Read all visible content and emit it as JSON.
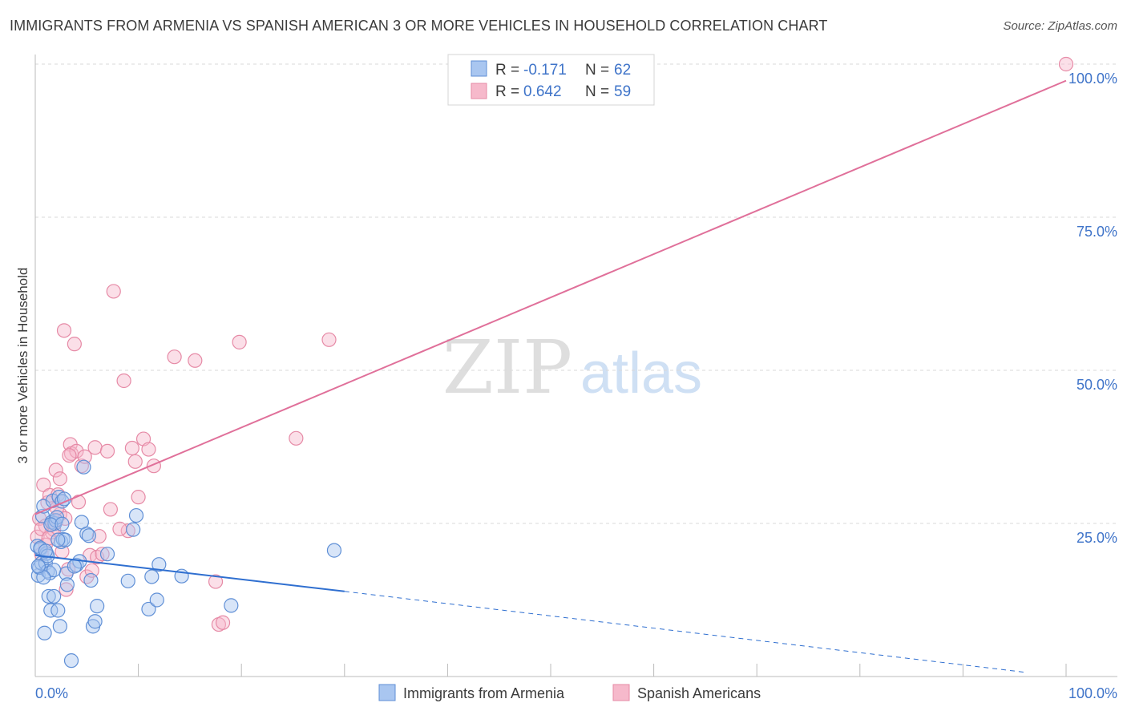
{
  "header": {
    "title": "IMMIGRANTS FROM ARMENIA VS SPANISH AMERICAN 3 OR MORE VEHICLES IN HOUSEHOLD CORRELATION CHART",
    "source": "Source: ZipAtlas.com"
  },
  "watermark": {
    "zip": "ZIP",
    "atlas": "atlas"
  },
  "colors": {
    "blue_fill": "#a9c6f0",
    "blue_stroke": "#5f8fd6",
    "blue_line": "#2f6fd0",
    "pink_fill": "#f6b9cb",
    "pink_stroke": "#e68aa6",
    "pink_line": "#e0709a",
    "axis_text": "#3f74c9",
    "grid": "#d9d9d9"
  },
  "legend": {
    "rows": [
      {
        "r_label": "R =",
        "r_value": "-0.171",
        "n_label": "N =",
        "n_value": "62",
        "series": "armenia"
      },
      {
        "r_label": "R =",
        "r_value": "0.642",
        "n_label": "N =",
        "n_value": "59",
        "series": "spanish"
      }
    ]
  },
  "bottom_legend": [
    "Immigrants from Armenia",
    "Spanish Americans"
  ],
  "chart_data": {
    "type": "scatter",
    "title": "IMMIGRANTS FROM ARMENIA VS SPANISH AMERICAN 3 OR MORE VEHICLES IN HOUSEHOLD CORRELATION CHART",
    "xlabel": "",
    "ylabel": "3 or more Vehicles in Household",
    "xlim": [
      0,
      100
    ],
    "ylim": [
      0,
      100
    ],
    "x_tick_labels": [
      {
        "value": 0,
        "label": "0.0%"
      },
      {
        "value": 100,
        "label": "100.0%"
      }
    ],
    "y_tick_labels": [
      {
        "value": 25,
        "label": "25.0%"
      },
      {
        "value": 50,
        "label": "50.0%"
      },
      {
        "value": 75,
        "label": "75.0%"
      },
      {
        "value": 100,
        "label": "100.0%"
      }
    ],
    "grid": "horizontal dashed",
    "series": [
      {
        "name": "Immigrants from Armenia",
        "R": -0.171,
        "N": 62,
        "trend": {
          "x0": 0,
          "y0": 19.8,
          "x1": 30,
          "y1": 13.9,
          "dashed_to_x": 96,
          "dashed_to_y": 0.7
        },
        "points": [
          [
            0.2,
            21.3
          ],
          [
            0.3,
            16.5
          ],
          [
            0.4,
            17.8
          ],
          [
            0.5,
            20.8
          ],
          [
            0.6,
            18.5
          ],
          [
            0.7,
            26.2
          ],
          [
            0.8,
            27.8
          ],
          [
            0.9,
            7.1
          ],
          [
            1.0,
            18.5
          ],
          [
            1.1,
            20.1
          ],
          [
            1.2,
            17.2
          ],
          [
            1.3,
            13.1
          ],
          [
            1.4,
            16.9
          ],
          [
            1.5,
            10.8
          ],
          [
            1.6,
            25.2
          ],
          [
            1.7,
            28.7
          ],
          [
            1.8,
            13.1
          ],
          [
            1.9,
            25.0
          ],
          [
            2.0,
            25.5
          ],
          [
            2.1,
            26.0
          ],
          [
            2.2,
            10.8
          ],
          [
            2.3,
            29.3
          ],
          [
            2.4,
            8.2
          ],
          [
            2.5,
            22.0
          ],
          [
            2.6,
            28.6
          ],
          [
            2.7,
            22.4
          ],
          [
            2.8,
            29.0
          ],
          [
            2.9,
            22.3
          ],
          [
            3.0,
            16.8
          ],
          [
            3.1,
            15.0
          ],
          [
            3.5,
            2.6
          ],
          [
            4.0,
            18.2
          ],
          [
            4.3,
            18.8
          ],
          [
            4.5,
            25.2
          ],
          [
            4.7,
            34.2
          ],
          [
            5.0,
            23.3
          ],
          [
            5.2,
            23.0
          ],
          [
            5.4,
            15.7
          ],
          [
            5.6,
            8.2
          ],
          [
            5.8,
            9.0
          ],
          [
            6.0,
            11.5
          ],
          [
            7.0,
            20.0
          ],
          [
            9.0,
            15.6
          ],
          [
            9.5,
            24.0
          ],
          [
            9.8,
            26.3
          ],
          [
            11.0,
            11.0
          ],
          [
            11.3,
            16.3
          ],
          [
            11.8,
            12.5
          ],
          [
            12.0,
            18.3
          ],
          [
            14.2,
            16.4
          ],
          [
            19.0,
            11.6
          ],
          [
            29.0,
            20.6
          ],
          [
            0.5,
            21.0
          ],
          [
            1.2,
            19.7
          ],
          [
            1.8,
            17.4
          ],
          [
            2.2,
            22.3
          ],
          [
            0.8,
            16.2
          ],
          [
            1.5,
            24.8
          ],
          [
            2.6,
            24.9
          ],
          [
            3.8,
            18.0
          ],
          [
            0.3,
            18.0
          ],
          [
            1.0,
            20.5
          ]
        ]
      },
      {
        "name": "Spanish Americans",
        "R": 0.642,
        "N": 59,
        "trend": {
          "x0": 0,
          "y0": 26.5,
          "x1": 100,
          "y1": 97.3
        },
        "points": [
          [
            0.2,
            22.8
          ],
          [
            0.4,
            25.8
          ],
          [
            0.6,
            20.0
          ],
          [
            0.8,
            31.3
          ],
          [
            1.0,
            24.6
          ],
          [
            1.2,
            28.4
          ],
          [
            1.4,
            29.6
          ],
          [
            1.6,
            23.6
          ],
          [
            1.8,
            25.0
          ],
          [
            2.0,
            33.7
          ],
          [
            2.2,
            29.7
          ],
          [
            2.4,
            26.5
          ],
          [
            2.6,
            20.4
          ],
          [
            2.8,
            56.5
          ],
          [
            3.0,
            14.2
          ],
          [
            3.2,
            17.5
          ],
          [
            3.4,
            37.9
          ],
          [
            3.5,
            36.4
          ],
          [
            3.8,
            54.3
          ],
          [
            4.0,
            36.8
          ],
          [
            4.2,
            28.5
          ],
          [
            4.5,
            34.4
          ],
          [
            5.0,
            16.3
          ],
          [
            5.3,
            19.8
          ],
          [
            5.5,
            17.3
          ],
          [
            5.8,
            37.4
          ],
          [
            6.0,
            19.5
          ],
          [
            6.2,
            22.9
          ],
          [
            7.0,
            36.8
          ],
          [
            7.3,
            27.3
          ],
          [
            7.6,
            62.9
          ],
          [
            8.6,
            48.3
          ],
          [
            9.0,
            23.8
          ],
          [
            9.4,
            37.3
          ],
          [
            9.7,
            35.1
          ],
          [
            10.0,
            29.3
          ],
          [
            10.5,
            38.8
          ],
          [
            11.0,
            37.1
          ],
          [
            11.5,
            34.4
          ],
          [
            13.5,
            52.2
          ],
          [
            15.5,
            51.6
          ],
          [
            17.5,
            15.5
          ],
          [
            17.8,
            8.5
          ],
          [
            18.2,
            8.8
          ],
          [
            19.8,
            54.6
          ],
          [
            25.3,
            38.9
          ],
          [
            28.5,
            55.0
          ],
          [
            100.0,
            100.0
          ],
          [
            1.0,
            21.5
          ],
          [
            1.8,
            24.0
          ],
          [
            2.4,
            32.3
          ],
          [
            3.3,
            36.1
          ],
          [
            0.6,
            24.1
          ],
          [
            1.3,
            22.6
          ],
          [
            2.1,
            27.5
          ],
          [
            4.8,
            35.9
          ],
          [
            6.5,
            20.0
          ],
          [
            8.2,
            24.1
          ],
          [
            2.9,
            25.8
          ]
        ]
      }
    ]
  }
}
